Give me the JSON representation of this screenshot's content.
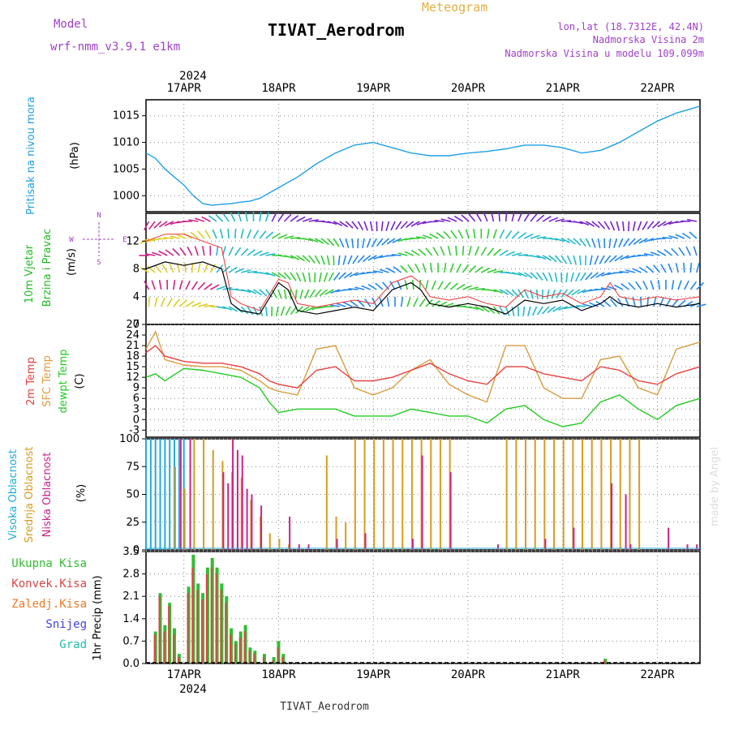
{
  "header": {
    "model_label": "Model",
    "model_name": "wrf-nmm_v3.9.1 e1km",
    "meteogram_label": "Meteogram",
    "station_title": "TIVAT_Aerodrom",
    "coords": "lon,lat (18.7312E, 42.4N)",
    "elev_line1": "Nadmorska Visina 2m",
    "elev_line2": "Nadmorska Visina u modelu 109.099m",
    "bottom_station": "TIVAT_Aerodrom",
    "watermark": "made by Angel"
  },
  "colors": {
    "pressure": "#1ea0e6",
    "wind_speed_label": "#22bb22",
    "temp2m": "#e84040",
    "sfc_temp": "#d89c40",
    "dewpt": "#22cc22",
    "high_cloud": "#22aadd",
    "mid_cloud": "#d89c20",
    "low_cloud": "#cc2288",
    "total_precip": "#33bb33",
    "conv_precip": "#dd4444",
    "freezing_precip": "#ee7722",
    "snow": "#4444dd",
    "hail": "#22bbaa",
    "purple_text": "#a040c8",
    "gold_text": "#e0b040"
  },
  "chart_data": [
    {
      "type": "line",
      "panel": "pressure",
      "ylabel_left": "Pritisak na nivou mora",
      "unit": "(hPa)",
      "yticks": [
        1000,
        1005,
        1010,
        1015
      ],
      "ylim": [
        997,
        1018
      ],
      "date_year": "2024",
      "x_ticks": [
        "17APR",
        "18APR",
        "19APR",
        "20APR",
        "21APR",
        "22APR"
      ],
      "x_range_days": [
        16.6,
        22.45
      ],
      "series": [
        {
          "x": [
            16.6,
            16.7,
            16.8,
            16.9,
            17.0,
            17.1,
            17.2,
            17.3,
            17.4,
            17.5,
            17.6,
            17.7,
            17.8,
            17.9,
            18.0,
            18.2,
            18.4,
            18.6,
            18.8,
            19.0,
            19.2,
            19.4,
            19.6,
            19.8,
            20.0,
            20.2,
            20.4,
            20.6,
            20.8,
            21.0,
            21.2,
            21.4,
            21.6,
            21.8,
            22.0,
            22.2,
            22.45
          ],
          "values": [
            1008,
            1007,
            1005,
            1003.5,
            1002,
            1000,
            998.5,
            998.2,
            998.4,
            998.5,
            998.8,
            999,
            999.5,
            1000.5,
            1001.5,
            1003.5,
            1006,
            1008,
            1009.5,
            1010,
            1009,
            1008,
            1007.5,
            1007.5,
            1008,
            1008.3,
            1008.8,
            1009.5,
            1009.5,
            1009,
            1008,
            1008.5,
            1010,
            1012,
            1014,
            1015.5,
            1016.8
          ]
        }
      ]
    },
    {
      "type": "line",
      "panel": "wind",
      "ylabel_left": "10m Vjetar",
      "ylabel_left2": "Brzina i Pravac",
      "unit": "(m/s)",
      "compass": [
        "N",
        "W",
        "E",
        "S"
      ],
      "yticks": [
        0,
        4,
        8,
        12
      ],
      "ylim": [
        0,
        16
      ],
      "series": [
        {
          "name": "speed",
          "x": [
            16.6,
            16.8,
            17.0,
            17.2,
            17.4,
            17.5,
            17.6,
            17.8,
            18.0,
            18.1,
            18.2,
            18.4,
            18.6,
            18.8,
            19.0,
            19.2,
            19.4,
            19.5,
            19.6,
            19.8,
            20.0,
            20.2,
            20.4,
            20.6,
            20.8,
            21.0,
            21.2,
            21.4,
            21.5,
            21.6,
            21.8,
            22.0,
            22.2,
            22.45
          ],
          "values": [
            8,
            9,
            8.5,
            9,
            8,
            3,
            2,
            1.5,
            6,
            5,
            2,
            1.5,
            2,
            2.5,
            2,
            5,
            6,
            5,
            3,
            2.5,
            3,
            2.5,
            1.5,
            3.5,
            3,
            3.5,
            2,
            3,
            4,
            3,
            2.5,
            3,
            2.5,
            3
          ]
        },
        {
          "name": "gust",
          "x": [
            16.6,
            16.8,
            17.0,
            17.2,
            17.4,
            17.5,
            17.6,
            17.8,
            18.0,
            18.1,
            18.2,
            18.4,
            18.6,
            18.8,
            19.0,
            19.2,
            19.4,
            19.5,
            19.6,
            19.8,
            20.0,
            20.2,
            20.4,
            20.6,
            20.8,
            21.0,
            21.2,
            21.4,
            21.5,
            21.6,
            21.8,
            22.0,
            22.2,
            22.45
          ],
          "values": [
            12,
            13,
            13,
            12,
            11,
            4,
            3,
            2,
            6.5,
            6,
            3,
            2.5,
            3,
            3.5,
            3,
            6,
            7,
            6,
            4,
            3.5,
            4,
            3,
            2.5,
            5,
            4,
            4.5,
            3,
            4,
            6,
            4,
            3.5,
            4,
            3.5,
            4
          ]
        }
      ]
    },
    {
      "type": "line",
      "panel": "temperature",
      "ylabel_left": "2m Temp",
      "ylabel_left2": "SFC Temp",
      "ylabel_left3": "dewpt Temp",
      "unit": "(C)",
      "yticks": [
        -3,
        0,
        3,
        6,
        9,
        12,
        15,
        18,
        21,
        24,
        27
      ],
      "ylim": [
        -5,
        27
      ],
      "series": [
        {
          "name": "2m Temp",
          "x": [
            16.6,
            16.7,
            16.8,
            17.0,
            17.2,
            17.4,
            17.6,
            17.8,
            17.9,
            18.0,
            18.2,
            18.4,
            18.6,
            18.8,
            19.0,
            19.2,
            19.4,
            19.6,
            19.8,
            20.0,
            20.2,
            20.4,
            20.6,
            20.8,
            21.0,
            21.2,
            21.4,
            21.6,
            21.8,
            22.0,
            22.2,
            22.45
          ],
          "values": [
            19,
            21,
            18,
            16.5,
            16,
            16,
            15,
            13,
            11,
            10,
            9,
            14,
            15,
            11,
            11,
            12,
            14,
            16,
            13,
            11,
            10,
            15,
            15,
            13,
            12,
            11,
            15,
            14,
            11,
            10,
            13,
            15
          ]
        },
        {
          "name": "SFC Temp",
          "x": [
            16.6,
            16.7,
            16.8,
            17.0,
            17.2,
            17.4,
            17.6,
            17.8,
            17.9,
            18.0,
            18.2,
            18.4,
            18.6,
            18.8,
            19.0,
            19.2,
            19.4,
            19.6,
            19.8,
            20.0,
            20.2,
            20.4,
            20.6,
            20.8,
            21.0,
            21.2,
            21.4,
            21.6,
            21.8,
            22.0,
            22.2,
            22.45
          ],
          "values": [
            20,
            25,
            17,
            15.5,
            15,
            15,
            14,
            11,
            9,
            8,
            7,
            20,
            21,
            9,
            7,
            9,
            14,
            17,
            10,
            7,
            5,
            21,
            21,
            9,
            6,
            6,
            17,
            18,
            9,
            7,
            20,
            22
          ]
        },
        {
          "name": "dewpt Temp",
          "x": [
            16.6,
            16.7,
            16.8,
            17.0,
            17.2,
            17.4,
            17.6,
            17.8,
            17.9,
            18.0,
            18.2,
            18.4,
            18.6,
            18.8,
            19.0,
            19.2,
            19.4,
            19.6,
            19.8,
            20.0,
            20.2,
            20.4,
            20.6,
            20.8,
            21.0,
            21.2,
            21.4,
            21.6,
            21.8,
            22.0,
            22.2,
            22.45
          ],
          "values": [
            12,
            13,
            11,
            14.5,
            14,
            13,
            12,
            9,
            5,
            2,
            3,
            3,
            3,
            1,
            1,
            1,
            3,
            2,
            1,
            1,
            -1,
            3,
            4,
            0,
            -2,
            -1,
            5,
            7,
            3,
            0,
            4,
            6
          ]
        }
      ]
    },
    {
      "type": "bar",
      "panel": "cloud",
      "ylabel_left": "Visoka Oblacnost",
      "ylabel_left2": "Srednja Oblacnost",
      "ylabel_left3": "Niska Oblacnost",
      "unit": "(%)",
      "yticks": [
        0,
        25,
        50,
        75,
        100
      ],
      "ylim": [
        0,
        100
      ],
      "series": [
        {
          "name": "Visoka Oblacnost",
          "x": [
            16.6,
            16.65,
            16.7,
            16.75,
            16.8,
            16.85,
            16.9,
            16.95,
            17.0
          ],
          "values": [
            100,
            100,
            100,
            100,
            100,
            100,
            100,
            100,
            100
          ]
        },
        {
          "name": "Srednja Oblacnost",
          "x": [
            16.9,
            17.0,
            17.1,
            17.2,
            17.3,
            17.4,
            17.5,
            17.6,
            17.7,
            17.8,
            17.9,
            18.0,
            18.1,
            18.5,
            18.6,
            18.7,
            18.8,
            18.9,
            19.0,
            19.1,
            19.2,
            19.3,
            19.4,
            19.5,
            19.6,
            19.7,
            19.8,
            20.4,
            20.5,
            20.6,
            20.7,
            20.8,
            20.9,
            21.0,
            21.1,
            21.2,
            21.3,
            21.4,
            21.5,
            21.6,
            21.7,
            21.8
          ],
          "values": [
            75,
            55,
            100,
            100,
            90,
            80,
            70,
            65,
            45,
            30,
            15,
            10,
            5,
            85,
            30,
            25,
            100,
            100,
            100,
            100,
            100,
            100,
            100,
            100,
            100,
            100,
            100,
            100,
            100,
            100,
            100,
            100,
            100,
            100,
            100,
            100,
            100,
            100,
            100,
            100,
            100,
            100
          ]
        },
        {
          "name": "Niska Oblacnost",
          "x": [
            16.95,
            17.05,
            17.4,
            17.45,
            17.5,
            17.55,
            17.6,
            17.65,
            17.7,
            17.8,
            18.1,
            18.2,
            18.3,
            18.6,
            18.9,
            19.4,
            19.5,
            19.8,
            20.3,
            20.8,
            21.1,
            21.5,
            21.65,
            21.7,
            22.1,
            22.3,
            22.4
          ],
          "values": [
            100,
            100,
            70,
            60,
            100,
            90,
            85,
            55,
            50,
            40,
            30,
            5,
            5,
            10,
            15,
            10,
            85,
            70,
            5,
            10,
            20,
            60,
            50,
            5,
            20,
            5,
            5
          ]
        }
      ]
    },
    {
      "type": "bar",
      "panel": "precip",
      "legend": [
        "Ukupna Kisa",
        "Konvek.Kisa",
        "Zaledj.Kisa",
        "Snijeg",
        "Grad"
      ],
      "ylabel": "1hr Precip (mm)",
      "yticks": [
        0,
        0.7,
        1.4,
        2.1,
        2.8,
        3.5
      ],
      "ylim": [
        0,
        3.5
      ],
      "series": [
        {
          "name": "Ukupna Kisa",
          "x": [
            16.7,
            16.75,
            16.8,
            16.85,
            16.9,
            16.95,
            17.05,
            17.1,
            17.15,
            17.2,
            17.25,
            17.3,
            17.35,
            17.4,
            17.45,
            17.5,
            17.55,
            17.6,
            17.65,
            17.7,
            17.75,
            17.85,
            17.95,
            18.0,
            18.05,
            21.45
          ],
          "values": [
            1,
            2.2,
            1.2,
            1.9,
            1.1,
            0.3,
            2.4,
            3.4,
            2.5,
            2.2,
            3.0,
            3.3,
            3.0,
            2.5,
            2.1,
            1.1,
            0.7,
            1.0,
            1.2,
            0.5,
            0.4,
            0.3,
            0.2,
            0.7,
            0.3,
            0.15
          ]
        },
        {
          "name": "Konvek.Kisa",
          "x": [
            16.7,
            16.75,
            16.8,
            16.85,
            16.9,
            16.95,
            17.05,
            17.1,
            17.15,
            17.2,
            17.25,
            17.3,
            17.35,
            17.4,
            17.45,
            17.5,
            17.55,
            17.6,
            17.65,
            17.7,
            17.75,
            17.85,
            17.95,
            18.0,
            18.05,
            21.45
          ],
          "values": [
            0.9,
            2.1,
            1.0,
            1.8,
            0.9,
            0.2,
            2.2,
            3.0,
            2.3,
            2.0,
            2.8,
            3.0,
            2.8,
            2.3,
            1.9,
            0.9,
            0.6,
            0.8,
            1.0,
            0.4,
            0.3,
            0.2,
            0.1,
            0.5,
            0.2,
            0.1
          ]
        }
      ]
    }
  ]
}
